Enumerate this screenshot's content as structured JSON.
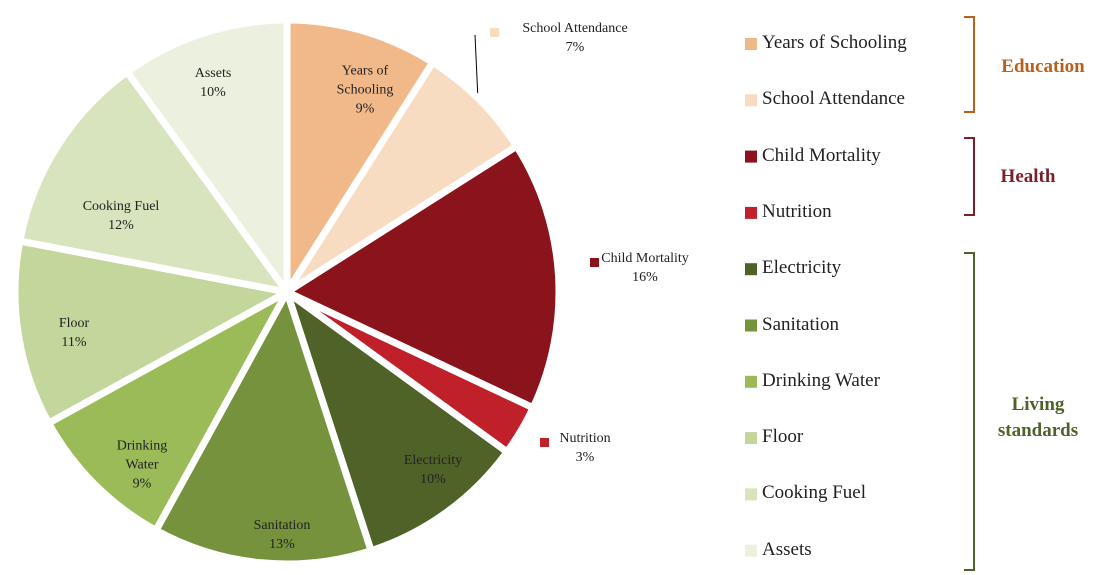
{
  "chart_data": {
    "type": "pie",
    "categories": [
      "Years of Schooling",
      "School Attendance",
      "Child Mortality",
      "Nutrition",
      "Electricity",
      "Sanitation",
      "Drinking Water",
      "Floor",
      "Cooking Fuel",
      "Assets"
    ],
    "values": [
      9,
      7,
      16,
      3,
      10,
      13,
      9,
      11,
      12,
      10
    ],
    "value_labels": [
      "9%",
      "7%",
      "16%",
      "3%",
      "10%",
      "13%",
      "9%",
      "11%",
      "12%",
      "10%"
    ],
    "colors": [
      "#f1b98a",
      "#f8dcc2",
      "#8b141c",
      "#c0202a",
      "#4f6228",
      "#76923c",
      "#9bbb59",
      "#c3d69b",
      "#d7e4bd",
      "#ebf1de"
    ],
    "groups": [
      {
        "name": "Education",
        "color": "#b9601c"
      },
      {
        "name": "Health",
        "color": "#7a1f2b"
      },
      {
        "name": "Living standards",
        "color": "#4f6228"
      }
    ]
  }
}
